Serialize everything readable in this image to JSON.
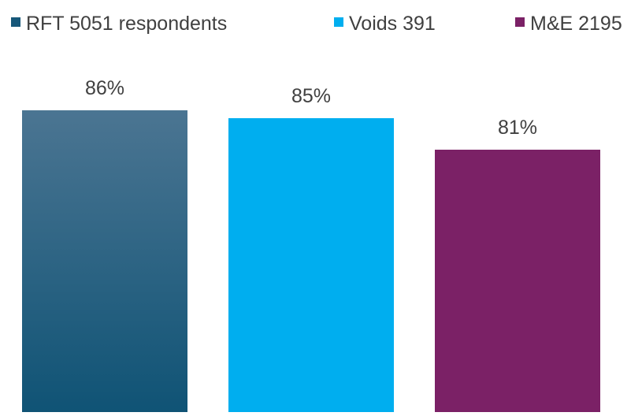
{
  "chart_data": {
    "type": "bar",
    "title": "",
    "xlabel": "",
    "ylabel": "",
    "ylim": [
      0,
      100
    ],
    "legend_position": "top",
    "grid": false,
    "series": [
      {
        "name": "RFT 5051 respondents",
        "value": 86,
        "label": "86%",
        "color": "#17587a",
        "gradient_top": "#4b7592",
        "gradient_bottom": "#0f5375"
      },
      {
        "name": "Voids 391",
        "value": 85,
        "label": "85%",
        "color": "#00aeef"
      },
      {
        "name": "M&E 2195",
        "value": 81,
        "label": "81%",
        "color": "#7b2166"
      }
    ]
  }
}
